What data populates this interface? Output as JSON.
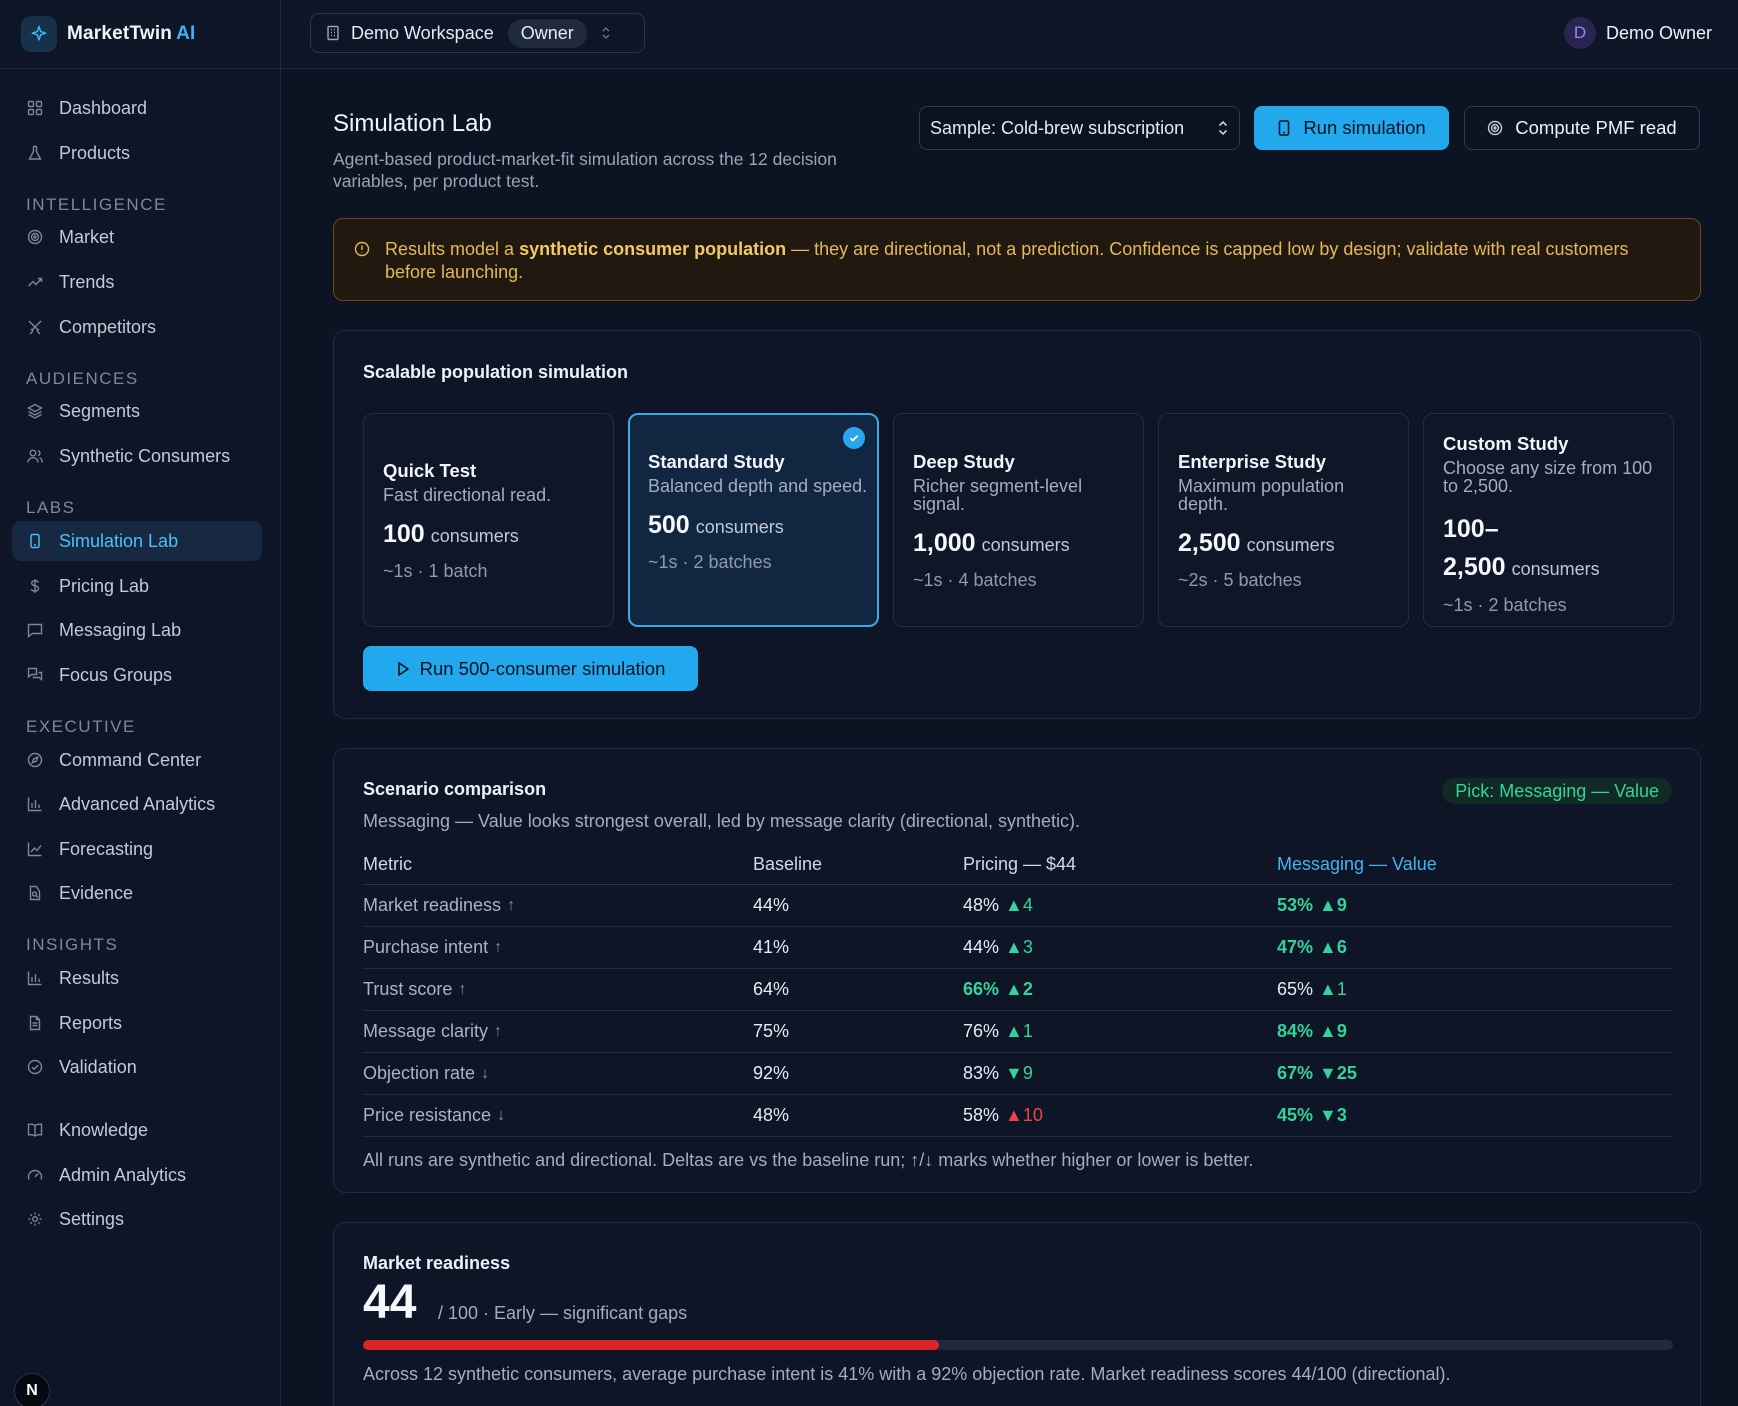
{
  "brand": {
    "name": "MarketTwin",
    "suffix": "AI"
  },
  "topbar": {
    "workspace": "Demo Workspace",
    "role": "Owner",
    "user_initial": "D",
    "user_name": "Demo Owner"
  },
  "nav": {
    "items": [
      {
        "id": "dashboard",
        "label": "Dashboard",
        "icon": "grid-icon"
      },
      {
        "id": "products",
        "label": "Products",
        "icon": "flask-icon"
      },
      {
        "id": "market",
        "label": "Market",
        "icon": "target-icon"
      },
      {
        "id": "trends",
        "label": "Trends",
        "icon": "trend-icon"
      },
      {
        "id": "competitors",
        "label": "Competitors",
        "icon": "swords-icon"
      },
      {
        "id": "segments",
        "label": "Segments",
        "icon": "layers-icon"
      },
      {
        "id": "synthetic-consumers",
        "label": "Synthetic Consumers",
        "icon": "users-icon"
      },
      {
        "id": "simulation-lab",
        "label": "Simulation Lab",
        "icon": "phone-icon"
      },
      {
        "id": "pricing-lab",
        "label": "Pricing Lab",
        "icon": "dollar-icon"
      },
      {
        "id": "messaging-lab",
        "label": "Messaging Lab",
        "icon": "message-icon"
      },
      {
        "id": "focus-groups",
        "label": "Focus Groups",
        "icon": "chat-icon"
      },
      {
        "id": "command-center",
        "label": "Command Center",
        "icon": "compass-icon"
      },
      {
        "id": "advanced-analytics",
        "label": "Advanced Analytics",
        "icon": "bar-chart-icon"
      },
      {
        "id": "forecasting",
        "label": "Forecasting",
        "icon": "line-chart-icon"
      },
      {
        "id": "evidence",
        "label": "Evidence",
        "icon": "file-search-icon"
      },
      {
        "id": "results",
        "label": "Results",
        "icon": "bar-chart-icon"
      },
      {
        "id": "reports",
        "label": "Reports",
        "icon": "document-icon"
      },
      {
        "id": "validation",
        "label": "Validation",
        "icon": "check-circle-icon"
      },
      {
        "id": "knowledge",
        "label": "Knowledge",
        "icon": "book-icon"
      },
      {
        "id": "admin-analytics",
        "label": "Admin Analytics",
        "icon": "gauge-icon"
      },
      {
        "id": "settings",
        "label": "Settings",
        "icon": "gear-icon"
      }
    ],
    "sections": [
      "INTELLIGENCE",
      "AUDIENCES",
      "LABS",
      "EXECUTIVE",
      "INSIGHTS"
    ],
    "active": "simulation-lab"
  },
  "page": {
    "title": "Simulation Lab",
    "subtitle": "Agent-based product-market-fit simulation across the 12 decision variables, per product test.",
    "sample_select": "Sample: Cold-brew subscription",
    "run_button": "Run simulation",
    "pmf_button": "Compute PMF read"
  },
  "banner": {
    "prefix": "Results model a ",
    "strong": "synthetic consumer population",
    "suffix": " — they are directional, not a prediction. Confidence is capped low by design; validate with real customers before launching."
  },
  "population": {
    "title": "Scalable population simulation",
    "unit": "consumers",
    "tiers": [
      {
        "name": "Quick Test",
        "desc": "Fast directional read.",
        "count": "100",
        "meta": "~1s · 1 batch",
        "selected": false
      },
      {
        "name": "Standard Study",
        "desc": "Balanced depth and speed.",
        "count": "500",
        "meta": "~1s · 2 batches",
        "selected": true
      },
      {
        "name": "Deep Study",
        "desc": "Richer segment-level signal.",
        "count": "1,000",
        "meta": "~1s · 4 batches",
        "selected": false
      },
      {
        "name": "Enterprise Study",
        "desc": "Maximum population depth.",
        "count": "2,500",
        "meta": "~2s · 5 batches",
        "selected": false
      },
      {
        "name": "Custom Study",
        "desc": "Choose any size from 100 to 2,500.",
        "count_line1": "100–",
        "count": "2,500",
        "meta": "~1s · 2 batches",
        "selected": false
      }
    ],
    "run_button": "Run 500-consumer simulation"
  },
  "scenario": {
    "title": "Scenario comparison",
    "pick": "Pick: Messaging — Value",
    "subtitle": "Messaging — Value looks strongest overall, led by message clarity (directional, synthetic).",
    "columns": [
      "Metric",
      "Baseline",
      "Pricing — $44",
      "Messaging — Value"
    ],
    "rows": [
      {
        "metric": "Market readiness",
        "dir": "↑",
        "baseline": "44%",
        "pricing": {
          "value": "48%",
          "delta": "▲4",
          "tone": "up",
          "best": false
        },
        "messaging": {
          "value": "53%",
          "delta": "▲9",
          "tone": "up",
          "best": true
        }
      },
      {
        "metric": "Purchase intent",
        "dir": "↑",
        "baseline": "41%",
        "pricing": {
          "value": "44%",
          "delta": "▲3",
          "tone": "up",
          "best": false
        },
        "messaging": {
          "value": "47%",
          "delta": "▲6",
          "tone": "up",
          "best": true
        }
      },
      {
        "metric": "Trust score",
        "dir": "↑",
        "baseline": "64%",
        "pricing": {
          "value": "66%",
          "delta": "▲2",
          "tone": "up",
          "best": true
        },
        "messaging": {
          "value": "65%",
          "delta": "▲1",
          "tone": "up",
          "best": false
        }
      },
      {
        "metric": "Message clarity",
        "dir": "↑",
        "baseline": "75%",
        "pricing": {
          "value": "76%",
          "delta": "▲1",
          "tone": "up",
          "best": false
        },
        "messaging": {
          "value": "84%",
          "delta": "▲9",
          "tone": "up",
          "best": true
        }
      },
      {
        "metric": "Objection rate",
        "dir": "↓",
        "baseline": "92%",
        "pricing": {
          "value": "83%",
          "delta": "▼9",
          "tone": "down",
          "best": false
        },
        "messaging": {
          "value": "67%",
          "delta": "▼25",
          "tone": "down",
          "best": true
        }
      },
      {
        "metric": "Price resistance",
        "dir": "↓",
        "baseline": "48%",
        "pricing": {
          "value": "58%",
          "delta": "▲10",
          "tone": "bad",
          "best": false
        },
        "messaging": {
          "value": "45%",
          "delta": "▼3",
          "tone": "down",
          "best": true
        }
      }
    ],
    "footnote": "All runs are synthetic and directional. Deltas are vs the baseline run; ↑/↓ marks whether higher or lower is better."
  },
  "readiness": {
    "title": "Market readiness",
    "score": "44",
    "of_text": "/ 100 · Early — significant gaps",
    "fill_fraction": 0.44,
    "summary": "Across 12 synthetic consumers, average purchase intent is 41% with a 92% objection rate. Market readiness scores 44/100 (directional)."
  },
  "colors": {
    "accent": "#22a8ec",
    "good": "#34d399",
    "bad": "#ef4444",
    "warning": "#e4b75c"
  }
}
